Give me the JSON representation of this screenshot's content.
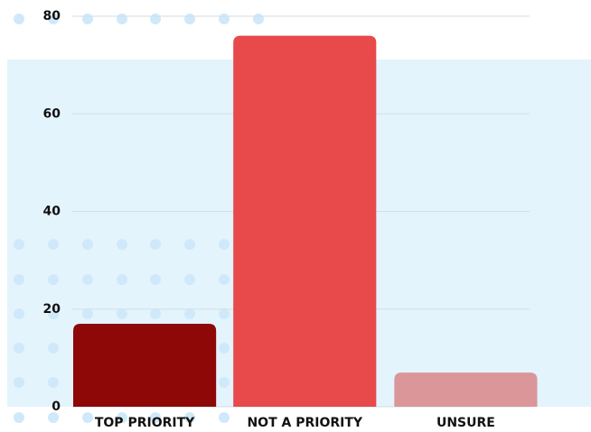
{
  "chart_data": {
    "type": "bar",
    "categories": [
      "TOP PRIORITY",
      "NOT A PRIORITY",
      "UNSURE"
    ],
    "values": [
      17,
      76,
      7
    ],
    "colors": [
      "#8e0808",
      "#e8494b",
      "#da9698"
    ],
    "ylim": [
      0,
      80
    ],
    "yticks": [
      0,
      20,
      40,
      60,
      80
    ],
    "grid": true
  }
}
